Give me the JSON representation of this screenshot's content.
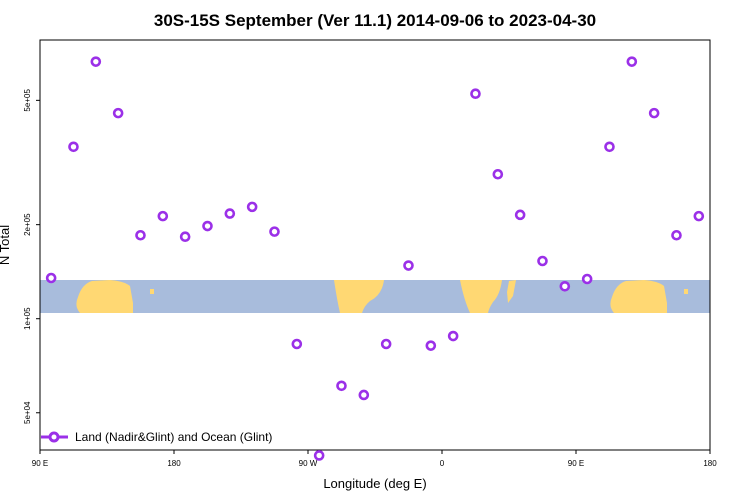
{
  "chart_data": {
    "type": "scatter",
    "title": "30S-15S September (Ver 11.1)   2014-09-06 to 2023-04-30",
    "xlabel": "Longitude (deg E)",
    "ylabel": "N Total",
    "x_ticks": [
      {
        "value": 90,
        "label": "90 E"
      },
      {
        "value": 180,
        "label": "180"
      },
      {
        "value": 270,
        "label": "90 W"
      },
      {
        "value": 360,
        "label": "0"
      },
      {
        "value": 450,
        "label": "90 E"
      },
      {
        "value": 540,
        "label": "180"
      }
    ],
    "y_ticks": [
      {
        "value": 50000,
        "label": "5e+04"
      },
      {
        "value": 100000,
        "label": "1e+05"
      },
      {
        "value": 200000,
        "label": "2e+05"
      },
      {
        "value": 500000,
        "label": "5e+05"
      }
    ],
    "xlim": [
      90,
      540
    ],
    "ylim": [
      38000,
      780000
    ],
    "yscale": "log",
    "grid": false,
    "legend_position": "bottom-left",
    "series": [
      {
        "name": "Land (Nadir&Glint) and Ocean (Glint)",
        "color": "#9b30e8",
        "x": [
          97.5,
          112.5,
          127.5,
          142.5,
          157.5,
          172.5,
          187.5,
          202.5,
          217.5,
          232.5,
          247.5,
          262.5,
          277.5,
          292.5,
          307.5,
          322.5,
          337.5,
          352.5,
          367.5,
          382.5,
          397.5,
          412.5,
          427.5,
          442.5,
          457.5,
          472.5,
          487.5,
          502.5,
          517.5,
          532.5
        ],
        "y": [
          135000,
          355000,
          665000,
          455000,
          185000,
          213000,
          183000,
          198000,
          217000,
          228000,
          190000,
          83000,
          36500,
          61000,
          57000,
          83000,
          148000,
          82000,
          88000,
          525000,
          290000,
          215000,
          153000,
          127000,
          134000,
          355000,
          665000,
          455000,
          185000,
          213000
        ]
      }
    ]
  }
}
